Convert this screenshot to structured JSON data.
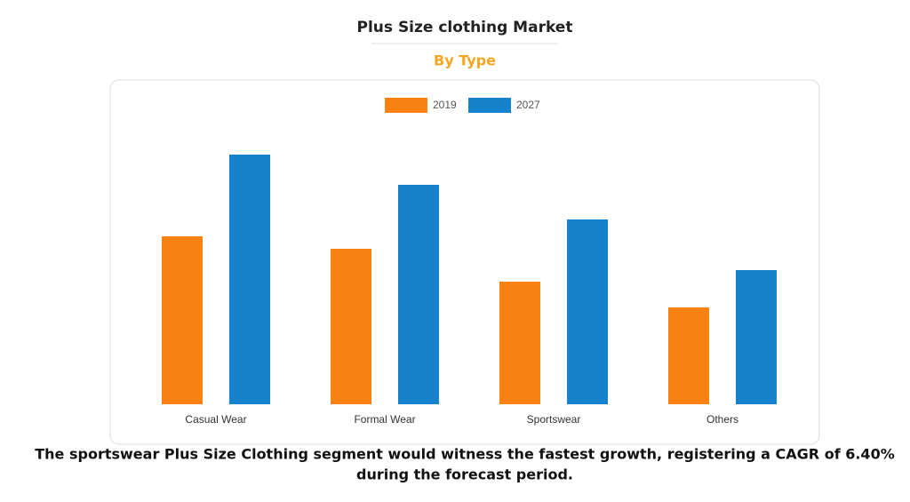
{
  "chart_data": {
    "type": "bar",
    "title": "Plus Size clothing Market",
    "subtitle": "By Type",
    "categories": [
      "Casual Wear",
      "Formal Wear",
      "Sportswear",
      "Others"
    ],
    "series": [
      {
        "name": "2019",
        "color": "#f98212",
        "values": [
          189,
          175,
          138,
          109
        ]
      },
      {
        "name": "2027",
        "color": "#1682cc",
        "values": [
          281,
          247,
          208,
          151
        ]
      }
    ],
    "ylim": [
      0,
      300
    ],
    "caption": [
      "The sportswear Plus Size Clothing segment would witness the fastest growth, registering a CAGR of 6.40%",
      "during the forecast period."
    ]
  }
}
